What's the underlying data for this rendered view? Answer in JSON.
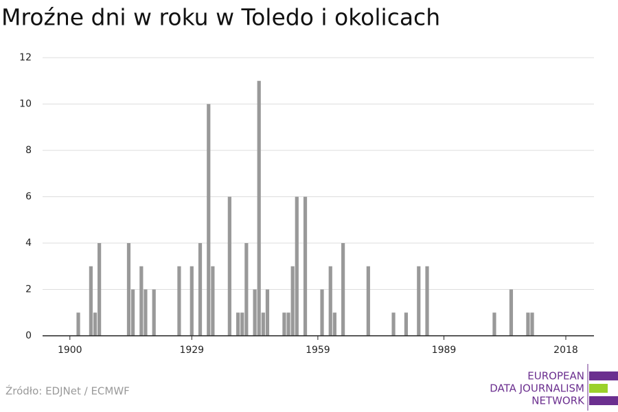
{
  "chart_data": {
    "type": "bar",
    "title": "Mroźne dni w roku w Toledo i okolicach",
    "source": "Źródło: EDJNet / ECMWF",
    "logo": [
      "EUROPEAN",
      "DATA JOURNALISM",
      "NETWORK"
    ],
    "x": [
      1902,
      1905,
      1906,
      1907,
      1914,
      1915,
      1917,
      1918,
      1920,
      1926,
      1929,
      1931,
      1933,
      1934,
      1938,
      1940,
      1941,
      1942,
      1944,
      1945,
      1946,
      1947,
      1951,
      1952,
      1953,
      1954,
      1956,
      1960,
      1962,
      1963,
      1965,
      1971,
      1977,
      1980,
      1983,
      1985,
      2001,
      2005,
      2009,
      2010
    ],
    "values": [
      1,
      3,
      1,
      4,
      4,
      2,
      3,
      2,
      2,
      3,
      3,
      4,
      10,
      3,
      6,
      1,
      1,
      4,
      2,
      11,
      1,
      2,
      1,
      1,
      3,
      6,
      6,
      2,
      3,
      1,
      4,
      3,
      1,
      1,
      3,
      3,
      1,
      2,
      1,
      1
    ],
    "color": "#999999",
    "xlim": [
      1893.5,
      2024.7
    ],
    "xticks": [
      1900,
      1929,
      1959,
      1989,
      2018
    ],
    "ylim": [
      0,
      12
    ],
    "yticks": [
      0,
      2,
      4,
      6,
      8,
      10,
      12
    ],
    "grid": true
  }
}
